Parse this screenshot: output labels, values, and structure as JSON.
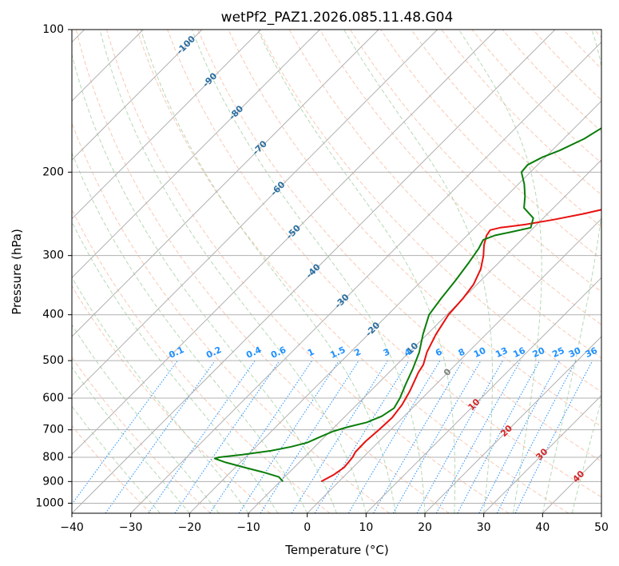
{
  "chart_data": {
    "type": "line",
    "title": "wetPf2_PAZ1.2026.085.11.48.G04",
    "xlabel": "Temperature (°C)",
    "ylabel": "Pressure (hPa)",
    "xlim": [
      -40,
      50
    ],
    "ylim": [
      1050,
      100
    ],
    "x_ticks": [
      -40,
      -30,
      -20,
      -10,
      0,
      10,
      20,
      30,
      40,
      50
    ],
    "x_tick_labels": [
      "−40",
      "−30",
      "−20",
      "−10",
      "0",
      "10",
      "20",
      "30",
      "40",
      "50"
    ],
    "y_ticks": [
      100,
      200,
      300,
      400,
      500,
      600,
      700,
      800,
      900,
      1000
    ],
    "y_tick_labels": [
      "100",
      "200",
      "300",
      "400",
      "500",
      "600",
      "700",
      "800",
      "900",
      "1000"
    ],
    "skew": 45,
    "colors": {
      "temperature": "#e8110f",
      "dewpoint": "#0a7d0a",
      "grid": "#b0b0b0",
      "dry_adiabat": "#f4a582",
      "moist_adiabat": "#9ccc9c",
      "mixing_ratio": "#1e90ff",
      "isotherm_cold_label": "#2a6ea0",
      "isotherm_warm_label": "#d62728",
      "isotherm_zero_label": "#808080"
    },
    "series": [
      {
        "name": "Temperature",
        "pressure": [
          900,
          870,
          840,
          800,
          780,
          740,
          700,
          660,
          620,
          580,
          550,
          530,
          510,
          480,
          440,
          400,
          370,
          345,
          320,
          300,
          285,
          272,
          265,
          262,
          258,
          252,
          245,
          237,
          228,
          218,
          205,
          195,
          180,
          168,
          155,
          140,
          125,
          115,
          105,
          100
        ],
        "values": [
          -3,
          -2,
          -1.5,
          -1.8,
          -2.2,
          -2.3,
          -2,
          -1.8,
          -2.3,
          -3.3,
          -4.3,
          -5,
          -5.5,
          -7,
          -8.5,
          -9.7,
          -10,
          -10.6,
          -12,
          -13.8,
          -15.5,
          -16.7,
          -17,
          -15.7,
          -12,
          -8,
          -4,
          0,
          3,
          5.5,
          7.5,
          9,
          11.5,
          13.8,
          17,
          21,
          24.5,
          26.5,
          29,
          31
        ]
      },
      {
        "name": "Dewpoint",
        "pressure": [
          900,
          880,
          860,
          840,
          820,
          805,
          800,
          790,
          775,
          760,
          745,
          725,
          705,
          690,
          675,
          655,
          630,
          600,
          560,
          520,
          480,
          440,
          400,
          370,
          340,
          310,
          290,
          278,
          272,
          268,
          262,
          250,
          238,
          225,
          212,
          200,
          193,
          186,
          180,
          170,
          160,
          145,
          130,
          118,
          108,
          100
        ],
        "values": [
          -9.5,
          -11,
          -14.5,
          -18.5,
          -22.5,
          -25,
          -24.5,
          -21,
          -16.8,
          -14,
          -12,
          -10.8,
          -9.5,
          -7.7,
          -5.3,
          -3.8,
          -3.1,
          -3.8,
          -5.2,
          -6.6,
          -8.3,
          -10.7,
          -13,
          -13.7,
          -14.3,
          -15.1,
          -15.8,
          -16.5,
          -15.3,
          -13.3,
          -10.5,
          -11.7,
          -15,
          -16.8,
          -19,
          -21.5,
          -21.7,
          -20.5,
          -18.7,
          -16.5,
          -15.2,
          -12.5,
          -9.7,
          -6.5,
          -3.8,
          -2
        ]
      }
    ],
    "isotherm_labels": {
      "cold": [
        "-100",
        "-90",
        "-80",
        "-70",
        "-60",
        "-50",
        "-40",
        "-30",
        "-20",
        "-10"
      ],
      "zero": "0",
      "warm": [
        "10",
        "20",
        "30",
        "40"
      ]
    },
    "mixing_ratio_labels": [
      "0.1",
      "0.2",
      "0.4",
      "0.6",
      "1",
      "1.5",
      "2",
      "3",
      "4",
      "6",
      "8",
      "10",
      "13",
      "16",
      "20",
      "25",
      "30",
      "36"
    ]
  }
}
